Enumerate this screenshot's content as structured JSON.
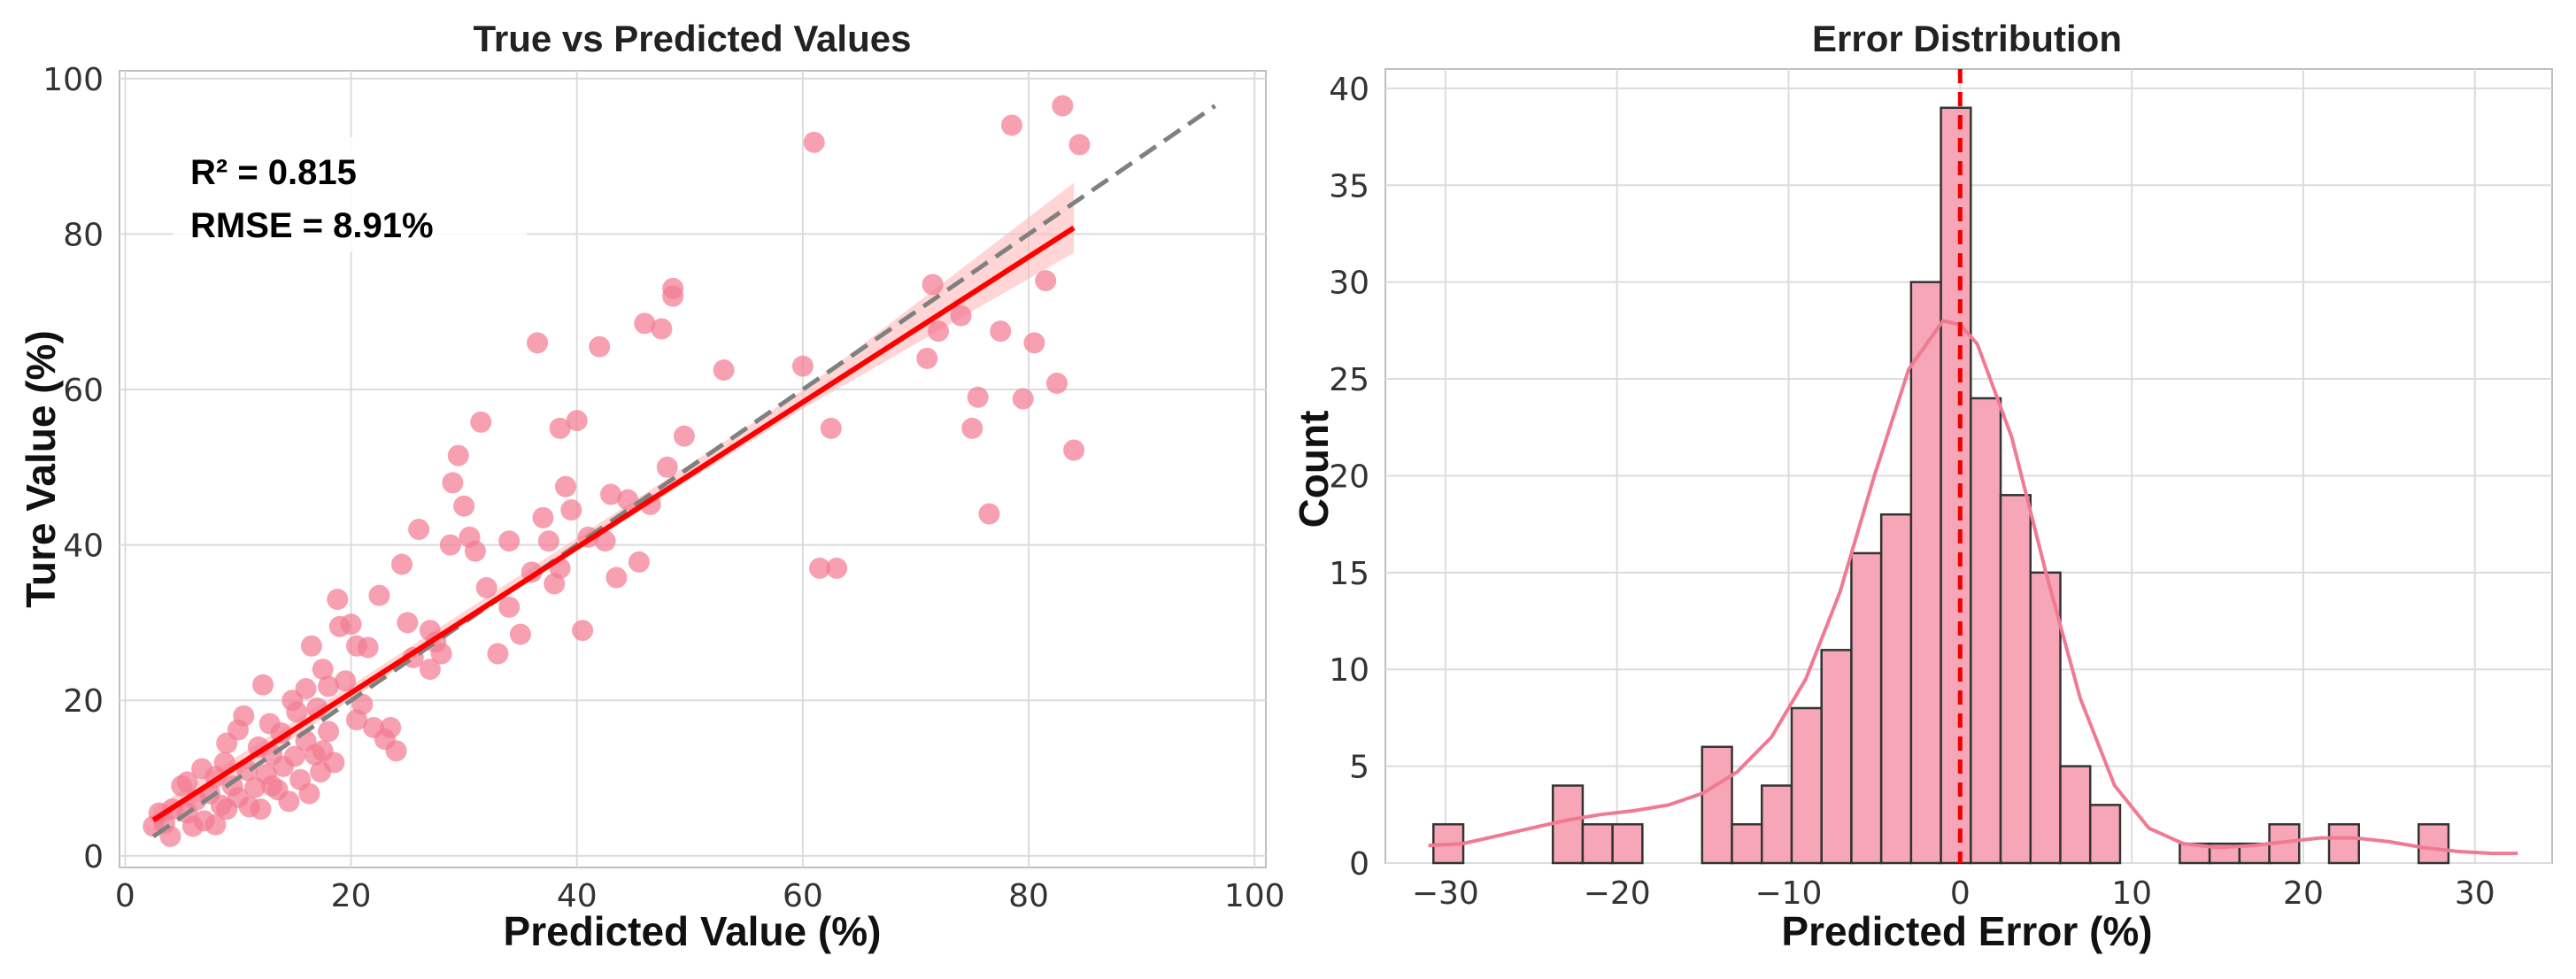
{
  "chart_data": [
    {
      "type": "scatter",
      "title": "True vs Predicted Values",
      "xlabel": "Predicted Value (%)",
      "ylabel": "Ture Value (%)",
      "xlim": [
        -0.5,
        101
      ],
      "ylim": [
        -1.5,
        101
      ],
      "xticks": [
        0,
        20,
        40,
        60,
        80,
        100
      ],
      "yticks": [
        0,
        20,
        40,
        60,
        80,
        100
      ],
      "grid": true,
      "annotations": {
        "r2": "R² = 0.815",
        "rmse": "RMSE = 8.91%"
      },
      "colors": {
        "points": "#f37b93",
        "fit": "#ff0000",
        "band": "#ffb3b3",
        "identity": "#808080"
      },
      "identity_line": {
        "x": [
          2.5,
          96.5
        ],
        "y": [
          2.5,
          96.5
        ]
      },
      "regression": {
        "x": [
          2.5,
          84
        ],
        "y": [
          4.6,
          80.8
        ],
        "band": [
          {
            "x": 2.5,
            "lo": 3.1,
            "hi": 6.1
          },
          {
            "x": 20,
            "lo": 20.1,
            "hi": 21.9
          },
          {
            "x": 40,
            "lo": 39.3,
            "hi": 40.9
          },
          {
            "x": 60,
            "lo": 57.5,
            "hi": 59.9
          },
          {
            "x": 84,
            "lo": 77.6,
            "hi": 86.6
          }
        ]
      },
      "points": [
        [
          2.5,
          3.8
        ],
        [
          3.0,
          5.5
        ],
        [
          3.5,
          4.2
        ],
        [
          4.0,
          2.5
        ],
        [
          4.2,
          6.0
        ],
        [
          5.0,
          9.0
        ],
        [
          5.5,
          5.5
        ],
        [
          6.0,
          3.8
        ],
        [
          6.3,
          7.2
        ],
        [
          6.8,
          11.2
        ],
        [
          7.0,
          4.5
        ],
        [
          7.5,
          8.0
        ],
        [
          8.0,
          10.2
        ],
        [
          8.0,
          4.0
        ],
        [
          8.5,
          6.5
        ],
        [
          8.8,
          12.0
        ],
        [
          9.0,
          14.5
        ],
        [
          9.5,
          9.0
        ],
        [
          10.0,
          16.2
        ],
        [
          10.0,
          7.5
        ],
        [
          10.5,
          18.0
        ],
        [
          10.8,
          11.0
        ],
        [
          11.0,
          6.3
        ],
        [
          11.5,
          8.8
        ],
        [
          11.8,
          14.0
        ],
        [
          12.0,
          6.0
        ],
        [
          12.2,
          22.0
        ],
        [
          12.5,
          10.5
        ],
        [
          12.8,
          17.0
        ],
        [
          13.0,
          13.0
        ],
        [
          13.5,
          8.5
        ],
        [
          13.8,
          15.8
        ],
        [
          14.0,
          11.5
        ],
        [
          14.5,
          7.0
        ],
        [
          14.8,
          20.0
        ],
        [
          15.0,
          12.8
        ],
        [
          15.2,
          18.5
        ],
        [
          15.5,
          9.8
        ],
        [
          16.0,
          21.5
        ],
        [
          16.0,
          14.8
        ],
        [
          16.3,
          8.0
        ],
        [
          16.5,
          27.0
        ],
        [
          16.8,
          13.0
        ],
        [
          17.0,
          19.0
        ],
        [
          17.3,
          10.8
        ],
        [
          17.5,
          24.0
        ],
        [
          18.0,
          16.0
        ],
        [
          18.0,
          21.8
        ],
        [
          18.5,
          12.0
        ],
        [
          18.8,
          33.0
        ],
        [
          19.0,
          29.5
        ],
        [
          19.5,
          22.5
        ],
        [
          20.0,
          29.8
        ],
        [
          20.5,
          27.0
        ],
        [
          21.5,
          26.8
        ],
        [
          22.0,
          16.5
        ],
        [
          22.5,
          33.5
        ],
        [
          23.0,
          15.0
        ],
        [
          23.5,
          16.5
        ],
        [
          24.0,
          13.5
        ],
        [
          24.5,
          37.5
        ],
        [
          25.0,
          30.0
        ],
        [
          25.5,
          25.5
        ],
        [
          26.0,
          42.0
        ],
        [
          27.0,
          29.0
        ],
        [
          27.5,
          27.5
        ],
        [
          28.0,
          26.0
        ],
        [
          28.8,
          40.0
        ],
        [
          29.0,
          48.0
        ],
        [
          29.5,
          51.5
        ],
        [
          30.0,
          45.0
        ],
        [
          30.5,
          41.0
        ],
        [
          31.0,
          39.2
        ],
        [
          31.5,
          55.8
        ],
        [
          32.0,
          34.5
        ],
        [
          33.0,
          26.0
        ],
        [
          34.0,
          40.5
        ],
        [
          35.0,
          28.5
        ],
        [
          36.0,
          36.5
        ],
        [
          36.5,
          66.0
        ],
        [
          37.0,
          43.5
        ],
        [
          37.5,
          40.5
        ],
        [
          38.0,
          35.0
        ],
        [
          38.5,
          55.0
        ],
        [
          39.0,
          47.5
        ],
        [
          39.5,
          44.5
        ],
        [
          40.0,
          56.0
        ],
        [
          40.5,
          29.0
        ],
        [
          41.0,
          41.0
        ],
        [
          42.0,
          65.5
        ],
        [
          43.0,
          46.5
        ],
        [
          43.5,
          35.8
        ],
        [
          44.5,
          45.8
        ],
        [
          45.5,
          37.8
        ],
        [
          46.0,
          68.5
        ],
        [
          46.5,
          45.2
        ],
        [
          47.5,
          67.8
        ],
        [
          48.0,
          50.0
        ],
        [
          48.5,
          73.0
        ],
        [
          48.5,
          72.0
        ],
        [
          49.5,
          54.0
        ],
        [
          53.0,
          62.5
        ],
        [
          60.0,
          63.0
        ],
        [
          61.0,
          91.8
        ],
        [
          61.5,
          37.0
        ],
        [
          62.5,
          55.0
        ],
        [
          63.0,
          37.0
        ],
        [
          71.0,
          64.0
        ],
        [
          71.5,
          73.5
        ],
        [
          72.0,
          67.5
        ],
        [
          74.0,
          69.5
        ],
        [
          75.0,
          55.0
        ],
        [
          75.5,
          59.0
        ],
        [
          76.5,
          44.0
        ],
        [
          77.5,
          67.5
        ],
        [
          78.5,
          94.0
        ],
        [
          79.5,
          58.8
        ],
        [
          80.5,
          66.0
        ],
        [
          81.5,
          74.0
        ],
        [
          82.5,
          60.8
        ],
        [
          83.0,
          96.5
        ],
        [
          84.0,
          52.2
        ],
        [
          84.5,
          91.5
        ],
        [
          5.5,
          9.5
        ],
        [
          9.0,
          6.0
        ],
        [
          13.0,
          9.0
        ],
        [
          17.5,
          13.5
        ],
        [
          21.0,
          19.5
        ],
        [
          34.0,
          32.0
        ],
        [
          38.5,
          37.0
        ],
        [
          42.5,
          40.5
        ],
        [
          20.5,
          17.5
        ],
        [
          27.0,
          24.0
        ]
      ]
    },
    {
      "type": "histogram",
      "title": "Error Distribution",
      "xlabel": "Predicted Error (%)",
      "ylabel": "Count",
      "xlim": [
        -33.5,
        34.5
      ],
      "ylim": [
        0,
        41
      ],
      "xticks": [
        -30,
        -20,
        -10,
        0,
        10,
        20,
        30
      ],
      "xtick_labels": [
        "−30",
        "−20",
        "−10",
        "0",
        "10",
        "20",
        "30"
      ],
      "yticks": [
        0,
        5,
        10,
        15,
        20,
        25,
        30,
        35,
        40
      ],
      "grid": true,
      "colors": {
        "bars": "#f6a6b6",
        "edge": "#333333",
        "kde": "#f07a92",
        "mean_line": "#ee0000"
      },
      "mean_line_x": 0,
      "bins_start": -30.7,
      "bin_width": 1.74,
      "counts": [
        2,
        0,
        0,
        0,
        4,
        2,
        2,
        0,
        0,
        6,
        2,
        4,
        8,
        11,
        16,
        18,
        30,
        39,
        24,
        19,
        15,
        5,
        3,
        0,
        0,
        1,
        1,
        1,
        2,
        0,
        2,
        0,
        0,
        2
      ],
      "kde": {
        "x": [
          -31,
          -29,
          -27,
          -25,
          -23,
          -21,
          -19,
          -17,
          -15,
          -13,
          -11,
          -9,
          -7,
          -5,
          -3,
          -1,
          0,
          1,
          3,
          5,
          7,
          9,
          11,
          13,
          15,
          17,
          19,
          21,
          23,
          25,
          27,
          29,
          31,
          32.5
        ],
        "y": [
          0.9,
          1.0,
          1.4,
          1.8,
          2.2,
          2.5,
          2.7,
          3.0,
          3.6,
          4.7,
          6.5,
          9.5,
          14.0,
          20.0,
          25.5,
          28.0,
          27.8,
          26.8,
          22.0,
          15.0,
          8.5,
          4.0,
          1.8,
          1.0,
          0.8,
          0.9,
          1.1,
          1.3,
          1.3,
          1.1,
          0.8,
          0.6,
          0.5,
          0.5
        ]
      }
    }
  ]
}
